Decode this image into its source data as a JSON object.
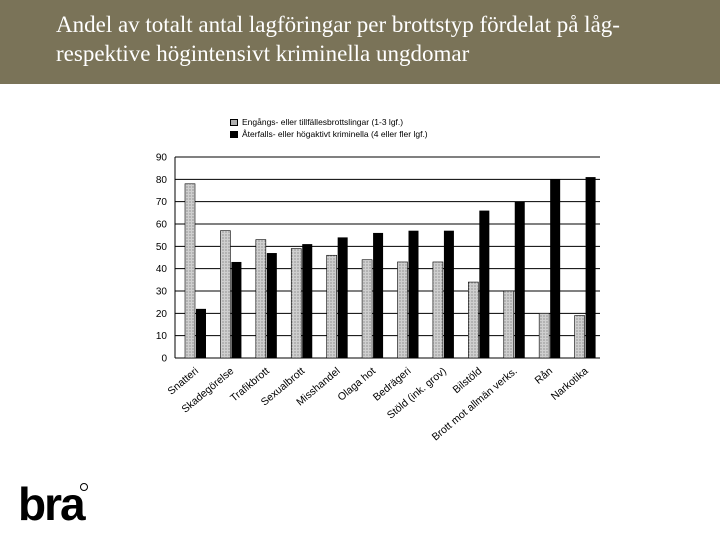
{
  "header": {
    "title": "Andel av totalt antal lagföringar per brottstyp fördelat på låg- respektive högintensivt kriminella ungdomar"
  },
  "logo": {
    "text": "brå"
  },
  "colors": {
    "header_bg": "#7a7358",
    "series_light": "#c8c8c8",
    "series_dark": "#000000"
  },
  "chart_data": {
    "type": "bar",
    "title": "",
    "xlabel": "",
    "ylabel": "",
    "ylim": [
      0,
      90
    ],
    "yticks": [
      0,
      10,
      20,
      30,
      40,
      50,
      60,
      70,
      80,
      90
    ],
    "grid": true,
    "legend_position": "top",
    "categories": [
      "Snatteri",
      "Skadegörelse",
      "Trafikbrott",
      "Sexualbrott",
      "Misshandel",
      "Olaga hot",
      "Bedrägeri",
      "Stöld (ink. grov)",
      "Bilstöld",
      "Brott mot allmän verks.",
      "Rån",
      "Narkotika"
    ],
    "series": [
      {
        "name": "Engångs- eller tillfällesbrottslingar (1-3 lgf.)",
        "values": [
          78,
          57,
          53,
          49,
          46,
          44,
          43,
          43,
          34,
          30,
          20,
          19
        ]
      },
      {
        "name": "Återfalls- eller högaktivt kriminella (4 eller fler lgf.)",
        "values": [
          22,
          43,
          47,
          51,
          54,
          56,
          57,
          57,
          66,
          70,
          80,
          81
        ]
      }
    ]
  }
}
